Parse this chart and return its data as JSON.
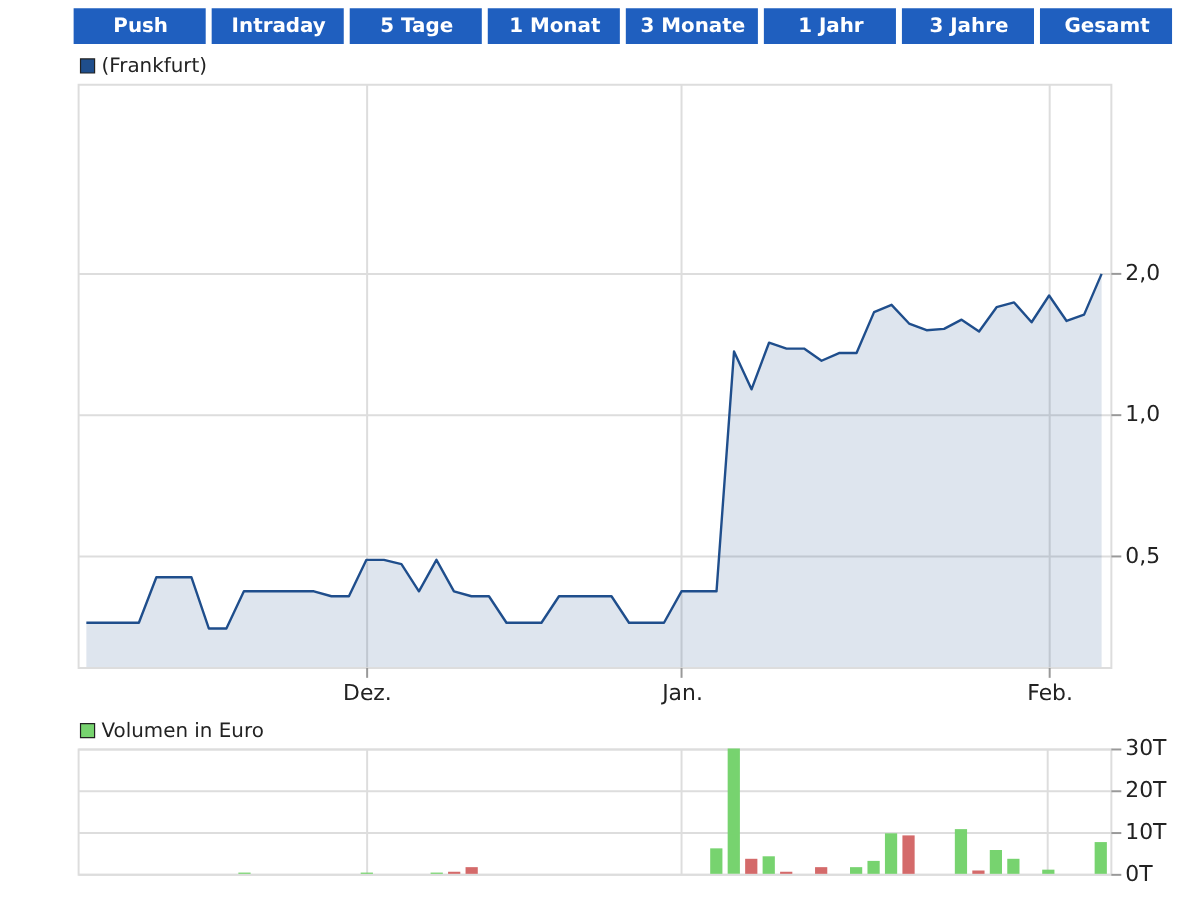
{
  "chart_data": [
    {
      "type": "area",
      "annotations": [
        "Push",
        "Intraday",
        "5 Tage",
        "1 Monat",
        "3 Monate",
        "1 Jahr",
        "3 Jahre",
        "Gesamt"
      ],
      "log": "y",
      "grid": true,
      "legend": "top left",
      "categories": [
        null,
        null,
        null,
        null,
        null,
        null,
        null,
        null,
        null,
        null,
        null,
        null,
        null,
        null,
        null,
        null,
        "Dez.",
        null,
        null,
        null,
        null,
        null,
        null,
        null,
        null,
        null,
        null,
        null,
        null,
        null,
        null,
        null,
        null,
        null,
        "Jan.",
        null,
        null,
        null,
        null,
        null,
        null,
        null,
        null,
        null,
        null,
        null,
        null,
        null,
        null,
        null,
        null,
        null,
        null,
        null,
        null,
        "Feb.",
        null,
        null,
        null
      ],
      "series": [
        {
          "name": "(Frankfurt)",
          "color": "#1f4e8c",
          "values": [
            0.36,
            0.36,
            0.36,
            0.36,
            0.45,
            0.45,
            0.45,
            0.35,
            0.35,
            0.42,
            0.42,
            0.42,
            0.42,
            0.42,
            0.41,
            0.41,
            0.49,
            0.49,
            0.48,
            0.42,
            0.49,
            0.42,
            0.41,
            0.41,
            0.36,
            0.36,
            0.36,
            0.41,
            0.41,
            0.41,
            0.41,
            0.36,
            0.36,
            0.36,
            0.42,
            0.42,
            0.42,
            1.36,
            1.13,
            1.42,
            1.38,
            1.38,
            1.3,
            1.35,
            1.35,
            1.65,
            1.71,
            1.56,
            1.51,
            1.52,
            1.59,
            1.5,
            1.69,
            1.73,
            1.57,
            1.79,
            1.58,
            1.63,
            1.99
          ]
        }
      ],
      "ylim": [
        0.29,
        5.05
      ],
      "yticks": [
        {
          "value": 0.5,
          "label": "0,5"
        },
        {
          "value": 1,
          "label": "1,0"
        },
        {
          "value": 2,
          "label": "2,0"
        }
      ]
    },
    {
      "type": "bar",
      "grid": true,
      "legend": "top left",
      "tick_labels": "y",
      "categories": [
        null,
        null,
        null,
        null,
        null,
        null,
        null,
        null,
        null,
        null,
        null,
        null,
        null,
        null,
        null,
        null,
        null,
        null,
        null,
        null,
        null,
        null,
        null,
        null,
        null,
        null,
        null,
        null,
        null,
        null,
        null,
        null,
        null,
        null,
        null,
        null,
        null,
        null,
        null,
        null,
        null,
        null,
        null,
        null,
        null,
        null,
        null,
        null,
        null,
        null,
        null,
        null,
        null,
        null,
        null,
        null,
        null,
        null,
        null
      ],
      "series": [
        {
          "name": "Volumen in Euro",
          "color": "#77d36f",
          "values": [
            null,
            null,
            null,
            null,
            null,
            null,
            null,
            null,
            null,
            0.3,
            null,
            null,
            null,
            null,
            null,
            null,
            0.3,
            null,
            null,
            null,
            0.3,
            0.5,
            1.6,
            null,
            null,
            null,
            null,
            null,
            null,
            null,
            null,
            null,
            null,
            null,
            null,
            null,
            6.1,
            30,
            3.6,
            4.2,
            0.5,
            null,
            1.6,
            null,
            1.6,
            3.1,
            9.7,
            9.2,
            null,
            null,
            10.7,
            0.8,
            5.7,
            3.6,
            null,
            1.0,
            null,
            null,
            7.6
          ],
          "colors": [
            null,
            null,
            null,
            null,
            null,
            null,
            null,
            null,
            null,
            "#77d36f",
            null,
            null,
            null,
            null,
            null,
            null,
            "#77d36f",
            null,
            null,
            null,
            "#77d36f",
            "#d46a6a",
            "#d46a6a",
            null,
            null,
            null,
            null,
            null,
            null,
            null,
            null,
            null,
            null,
            null,
            null,
            null,
            "#77d36f",
            "#77d36f",
            "#d46a6a",
            "#77d36f",
            "#d46a6a",
            null,
            "#d46a6a",
            null,
            "#77d36f",
            "#77d36f",
            "#77d36f",
            "#d46a6a",
            null,
            null,
            "#77d36f",
            "#d46a6a",
            "#77d36f",
            "#77d36f",
            null,
            "#77d36f",
            null,
            null,
            "#77d36f"
          ]
        }
      ],
      "ylim": [
        0,
        30
      ],
      "yticks": [
        {
          "value": 0,
          "label": "0T"
        },
        {
          "value": 10,
          "label": "10T"
        },
        {
          "value": 20,
          "label": "20T"
        },
        {
          "value": 30,
          "label": "30T"
        }
      ]
    }
  ]
}
